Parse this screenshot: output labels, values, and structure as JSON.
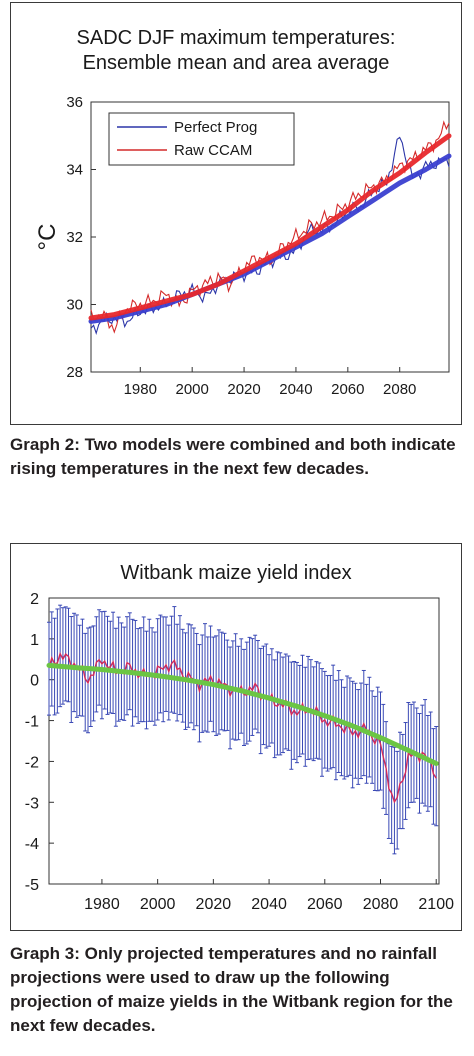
{
  "chart_data": [
    {
      "type": "line",
      "title": "SADC DJF maximum temperatures:",
      "subtitle": "Ensemble mean and area average",
      "xlabel": "",
      "ylabel": "°C",
      "xlim": [
        1961,
        2099
      ],
      "ylim": [
        28,
        36
      ],
      "xticks": [
        1980,
        2000,
        2020,
        2040,
        2060,
        2080
      ],
      "yticks": [
        28,
        30,
        32,
        34,
        36
      ],
      "grid": false,
      "legend_position": "top-left",
      "series": [
        {
          "name": "Perfect Prog",
          "color": "#2b35a8",
          "x": [
            1961,
            1965,
            1970,
            1975,
            1980,
            1985,
            1990,
            1995,
            2000,
            2005,
            2010,
            2015,
            2020,
            2025,
            2030,
            2035,
            2040,
            2045,
            2050,
            2055,
            2060,
            2065,
            2070,
            2075,
            2080,
            2085,
            2090,
            2095,
            2099
          ],
          "values": [
            29.2,
            29.5,
            29.6,
            29.5,
            29.8,
            29.9,
            30.0,
            30.3,
            30.4,
            30.2,
            30.6,
            30.8,
            30.9,
            31.0,
            31.3,
            31.4,
            31.6,
            32.2,
            32.2,
            32.4,
            32.8,
            32.9,
            33.4,
            33.6,
            35.0,
            33.7,
            34.1,
            34.2,
            34.3
          ]
        },
        {
          "name": "Raw CCAM",
          "color": "#d42a2a",
          "x": [
            1961,
            1965,
            1970,
            1975,
            1980,
            1985,
            1990,
            1995,
            2000,
            2005,
            2010,
            2015,
            2020,
            2025,
            2030,
            2035,
            2040,
            2045,
            2050,
            2055,
            2060,
            2065,
            2070,
            2075,
            2080,
            2085,
            2090,
            2095,
            2099
          ],
          "values": [
            29.6,
            29.7,
            29.3,
            29.9,
            30.0,
            30.1,
            30.3,
            30.0,
            30.4,
            30.6,
            30.8,
            30.6,
            31.1,
            31.4,
            31.3,
            31.7,
            32.0,
            32.3,
            32.5,
            32.7,
            33.0,
            33.3,
            33.5,
            33.7,
            34.1,
            34.3,
            34.6,
            34.9,
            35.5
          ]
        },
        {
          "name": "",
          "color": "#3a3fd0",
          "x": [
            1961,
            1970,
            1980,
            1990,
            2000,
            2010,
            2020,
            2030,
            2040,
            2050,
            2060,
            2070,
            2080,
            2090,
            2099
          ],
          "values": [
            29.5,
            29.6,
            29.8,
            30.0,
            30.3,
            30.6,
            30.9,
            31.3,
            31.7,
            32.1,
            32.6,
            33.1,
            33.6,
            34.0,
            34.4
          ]
        },
        {
          "name": "",
          "color": "#e8282c",
          "x": [
            1961,
            1970,
            1980,
            1990,
            2000,
            2010,
            2020,
            2030,
            2040,
            2050,
            2060,
            2070,
            2080,
            2090,
            2099
          ],
          "values": [
            29.6,
            29.7,
            29.9,
            30.1,
            30.3,
            30.6,
            31.0,
            31.4,
            31.8,
            32.3,
            32.8,
            33.4,
            33.9,
            34.5,
            35.0
          ]
        }
      ]
    },
    {
      "type": "line",
      "title": "Witbank maize yield index",
      "xlabel": "",
      "ylabel": "",
      "xlim": [
        1961,
        2101
      ],
      "ylim": [
        -5,
        2
      ],
      "xticks": [
        1980,
        2000,
        2020,
        2040,
        2060,
        2080,
        2100
      ],
      "yticks": [
        2,
        1,
        0,
        -1,
        -2,
        -3,
        -4,
        -5
      ],
      "grid": false,
      "series": [
        {
          "name": "",
          "color": "#d42a5a",
          "x": [
            1961,
            1965,
            1970,
            1975,
            1980,
            1985,
            1990,
            1995,
            2000,
            2005,
            2010,
            2015,
            2020,
            2025,
            2030,
            2035,
            2040,
            2045,
            2050,
            2055,
            2060,
            2065,
            2070,
            2075,
            2080,
            2085,
            2090,
            2095,
            2100
          ],
          "values": [
            0.3,
            0.6,
            0.4,
            0.0,
            0.5,
            0.2,
            0.3,
            0.1,
            0.2,
            0.4,
            0.1,
            -0.1,
            0.0,
            -0.2,
            -0.3,
            -0.2,
            -0.5,
            -0.6,
            -0.8,
            -0.7,
            -1.0,
            -1.1,
            -1.3,
            -1.2,
            -1.6,
            -3.1,
            -1.9,
            -1.8,
            -2.3
          ]
        },
        {
          "name": "",
          "color": "#6bc544",
          "x": [
            1961,
            1970,
            1980,
            1990,
            2000,
            2010,
            2020,
            2030,
            2040,
            2050,
            2060,
            2070,
            2080,
            2090,
            2100
          ],
          "values": [
            0.35,
            0.3,
            0.25,
            0.18,
            0.1,
            0.0,
            -0.12,
            -0.27,
            -0.45,
            -0.65,
            -0.88,
            -1.13,
            -1.42,
            -1.73,
            -2.05
          ]
        }
      ],
      "error_half_width": 1.1
    }
  ],
  "captions": {
    "graph2": "Graph 2: Two models were combined and both indicate rising temperatures in the next few decades.",
    "graph3": "Graph 3: Only projected temperatures and no rainfall projections were used to draw up the following projection of maize yields in the Witbank region for the next few decades."
  }
}
